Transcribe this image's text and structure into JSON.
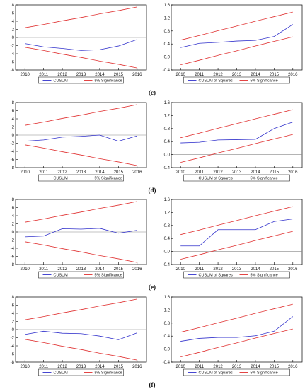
{
  "panel_labels": [
    "(c)",
    "(d)",
    "(e)",
    "(f)"
  ],
  "colors": {
    "stat": "#3333cc",
    "bounds": "#e03030",
    "zero": "#888888",
    "axis": "#000000"
  },
  "chart_data": [
    {
      "type": "line",
      "stat": "cusum",
      "x": [
        2010,
        2011,
        2012,
        2013,
        2014,
        2015,
        2016
      ],
      "ylim": [
        -8,
        8
      ],
      "yticks": [
        -8,
        -6,
        -4,
        -2,
        0,
        2,
        4,
        6,
        8
      ],
      "series": [
        {
          "name": "CUSUM",
          "values": [
            -1.5,
            -2.3,
            -2.7,
            -3.2,
            -3.0,
            -2.1,
            -0.5
          ]
        },
        {
          "name": "5% Significance",
          "values": [
            2.4,
            3.2,
            4.1,
            4.9,
            5.8,
            6.6,
            7.5
          ]
        },
        {
          "name": "",
          "values": [
            -2.4,
            -3.2,
            -4.1,
            -4.9,
            -5.8,
            -6.6,
            -7.5
          ]
        }
      ]
    },
    {
      "type": "line",
      "stat": "cusumsq",
      "x": [
        2010,
        2011,
        2012,
        2013,
        2014,
        2015,
        2016
      ],
      "ylim": [
        -0.4,
        1.6
      ],
      "yticks": [
        -0.4,
        0.0,
        0.4,
        0.8,
        1.2,
        1.6
      ],
      "series": [
        {
          "name": "CUSUM of Squares",
          "values": [
            0.29,
            0.42,
            0.45,
            0.49,
            0.51,
            0.63,
            1.0
          ]
        },
        {
          "name": "5% Significance",
          "values": [
            0.52,
            0.66,
            0.81,
            0.95,
            1.1,
            1.24,
            1.38
          ]
        },
        {
          "name": "",
          "values": [
            -0.24,
            -0.1,
            0.05,
            0.19,
            0.34,
            0.48,
            0.62
          ]
        }
      ]
    },
    {
      "type": "line",
      "stat": "cusum",
      "x": [
        2010,
        2011,
        2012,
        2013,
        2014,
        2015,
        2016
      ],
      "ylim": [
        -8,
        8
      ],
      "yticks": [
        -8,
        -6,
        -4,
        -2,
        0,
        2,
        4,
        6,
        8
      ],
      "series": [
        {
          "name": "CUSUM",
          "values": [
            -1.5,
            -1.2,
            -0.5,
            -0.3,
            0.0,
            -1.5,
            -0.2
          ]
        },
        {
          "name": "5% Significance",
          "values": [
            2.4,
            3.2,
            4.1,
            4.9,
            5.8,
            6.6,
            7.5
          ]
        },
        {
          "name": "",
          "values": [
            -2.4,
            -3.2,
            -4.1,
            -4.9,
            -5.8,
            -6.6,
            -7.5
          ]
        }
      ]
    },
    {
      "type": "line",
      "stat": "cusumsq",
      "x": [
        2010,
        2011,
        2012,
        2013,
        2014,
        2015,
        2016
      ],
      "ylim": [
        -0.4,
        1.6
      ],
      "yticks": [
        -0.4,
        0.0,
        0.4,
        0.8,
        1.2,
        1.6
      ],
      "series": [
        {
          "name": "CUSUM of Squares",
          "values": [
            0.36,
            0.38,
            0.45,
            0.46,
            0.47,
            0.8,
            1.0
          ]
        },
        {
          "name": "5% Significance",
          "values": [
            0.52,
            0.66,
            0.81,
            0.95,
            1.1,
            1.24,
            1.38
          ]
        },
        {
          "name": "",
          "values": [
            -0.24,
            -0.1,
            0.05,
            0.19,
            0.34,
            0.48,
            0.62
          ]
        }
      ]
    },
    {
      "type": "line",
      "stat": "cusum",
      "x": [
        2010,
        2011,
        2012,
        2013,
        2014,
        2015,
        2016
      ],
      "ylim": [
        -8,
        8
      ],
      "yticks": [
        -8,
        -6,
        -4,
        -2,
        0,
        2,
        4,
        6,
        8
      ],
      "series": [
        {
          "name": "CUSUM",
          "values": [
            -1.2,
            -1.0,
            0.8,
            0.7,
            0.9,
            -0.3,
            0.4
          ]
        },
        {
          "name": "5% Significance",
          "values": [
            2.4,
            3.2,
            4.1,
            4.9,
            5.8,
            6.6,
            7.5
          ]
        },
        {
          "name": "",
          "values": [
            -2.4,
            -3.2,
            -4.1,
            -4.9,
            -5.8,
            -6.6,
            -7.5
          ]
        }
      ]
    },
    {
      "type": "line",
      "stat": "cusumsq",
      "x": [
        2010,
        2011,
        2012,
        2013,
        2014,
        2015,
        2016
      ],
      "ylim": [
        -0.4,
        1.6
      ],
      "yticks": [
        -0.4,
        0.0,
        0.4,
        0.8,
        1.2,
        1.6
      ],
      "series": [
        {
          "name": "CUSUM of Squares",
          "values": [
            0.17,
            0.17,
            0.67,
            0.67,
            0.67,
            0.92,
            1.0
          ]
        },
        {
          "name": "5% Significance",
          "values": [
            0.52,
            0.66,
            0.81,
            0.95,
            1.1,
            1.24,
            1.38
          ]
        },
        {
          "name": "",
          "values": [
            -0.24,
            -0.1,
            0.05,
            0.19,
            0.34,
            0.48,
            0.62
          ]
        }
      ]
    },
    {
      "type": "line",
      "stat": "cusum",
      "x": [
        2010,
        2011,
        2012,
        2013,
        2014,
        2015,
        2016
      ],
      "ylim": [
        -8,
        8
      ],
      "yticks": [
        -8,
        -6,
        -4,
        -2,
        0,
        2,
        4,
        6,
        8
      ],
      "series": [
        {
          "name": "CUSUM",
          "values": [
            -1.2,
            -0.4,
            -0.9,
            -1.0,
            -1.6,
            -2.5,
            -0.8
          ]
        },
        {
          "name": "5% Significance",
          "values": [
            2.4,
            3.2,
            4.1,
            4.9,
            5.8,
            6.6,
            7.5
          ]
        },
        {
          "name": "",
          "values": [
            -2.4,
            -3.2,
            -4.1,
            -4.9,
            -5.8,
            -6.6,
            -7.5
          ]
        }
      ]
    },
    {
      "type": "line",
      "stat": "cusumsq",
      "x": [
        2010,
        2011,
        2012,
        2013,
        2014,
        2015,
        2016
      ],
      "ylim": [
        -0.4,
        1.6
      ],
      "yticks": [
        -0.4,
        0.0,
        0.4,
        0.8,
        1.2,
        1.6
      ],
      "series": [
        {
          "name": "CUSUM of Squares",
          "values": [
            0.24,
            0.33,
            0.36,
            0.36,
            0.41,
            0.55,
            1.0
          ]
        },
        {
          "name": "5% Significance",
          "values": [
            0.52,
            0.66,
            0.81,
            0.95,
            1.1,
            1.24,
            1.38
          ]
        },
        {
          "name": "",
          "values": [
            -0.24,
            -0.1,
            0.05,
            0.19,
            0.34,
            0.48,
            0.62
          ]
        }
      ]
    }
  ]
}
